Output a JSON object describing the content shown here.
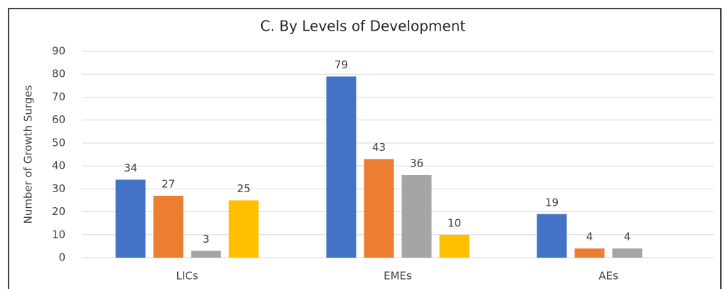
{
  "chart_data": {
    "type": "bar",
    "title": "C. By Levels of Development",
    "y_label": "Number of Growth Surges",
    "categories": [
      "LICs",
      "EMEs",
      "AEs"
    ],
    "series": [
      {
        "color": "#4472c4",
        "values": [
          34,
          79,
          19
        ]
      },
      {
        "color": "#ed7d31",
        "values": [
          27,
          43,
          4
        ]
      },
      {
        "color": "#a5a5a5",
        "values": [
          3,
          36,
          4
        ]
      },
      {
        "color": "#ffc000",
        "values": [
          25,
          10,
          null
        ]
      }
    ],
    "ylim": [
      0,
      90
    ],
    "yticks": [
      0,
      10,
      20,
      30,
      40,
      50,
      60,
      70,
      80,
      90
    ],
    "grid": true,
    "data_labels": true
  }
}
